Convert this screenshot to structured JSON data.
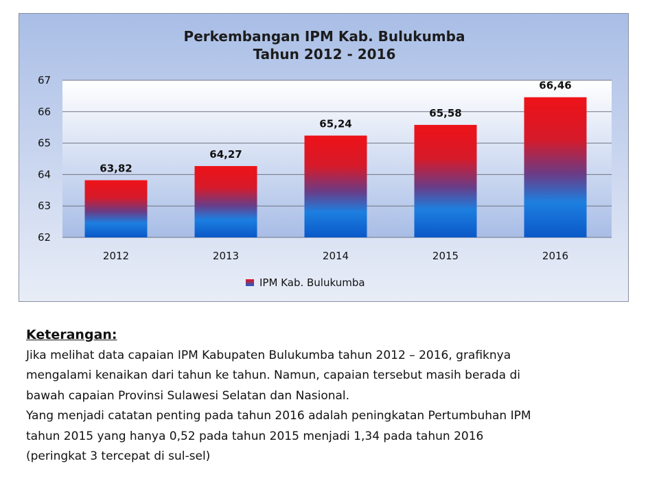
{
  "chart_data": {
    "type": "bar",
    "title": [
      "Perkembangan IPM Kab. Bulukumba",
      "Tahun 2012 - 2016"
    ],
    "categories": [
      "2012",
      "2013",
      "2014",
      "2015",
      "2016"
    ],
    "series": [
      {
        "name": "IPM Kab. Bulukumba",
        "values": [
          63.82,
          64.27,
          65.24,
          65.58,
          66.46
        ]
      }
    ],
    "data_labels": [
      "63,82",
      "64,27",
      "65,24",
      "65,58",
      "66,46"
    ],
    "ylim": [
      62,
      67
    ],
    "yticks": [
      "62",
      "63",
      "64",
      "65",
      "66",
      "67"
    ],
    "grid": true,
    "legend_position": "bottom",
    "colors": {
      "bar_top": "#e8141c",
      "bar_bottom": "#0b63d6"
    }
  },
  "notes": {
    "heading": "Keterangan:",
    "lines": [
      "Jika melihat data capaian IPM Kabupaten Bulukumba tahun 2012 – 2016, grafiknya",
      "mengalami kenaikan dari tahun ke tahun. Namun, capaian tersebut masih berada di",
      "bawah capaian Provinsi Sulawesi Selatan dan Nasional.",
      "Yang menjadi catatan penting pada tahun 2016 adalah peningkatan Pertumbuhan IPM",
      "tahun 2015 yang hanya 0,52 pada tahun 2015 menjadi  1,34 pada tahun 2016",
      "(peringkat 3 tercepat di sul-sel)"
    ]
  }
}
